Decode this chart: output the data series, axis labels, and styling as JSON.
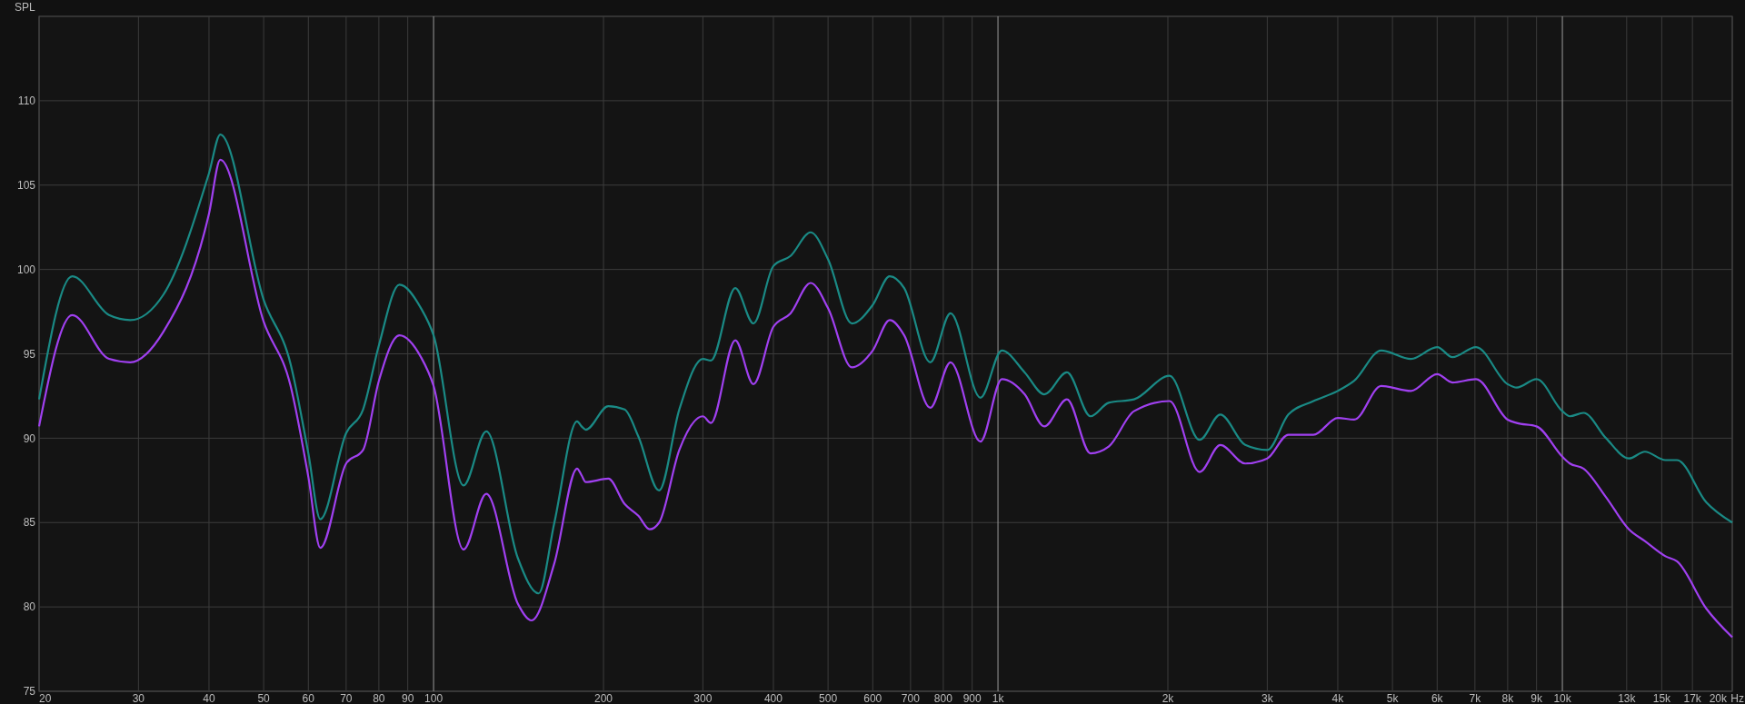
{
  "chart_data": {
    "type": "line",
    "ylabel": "SPL",
    "log": "x",
    "grid": true,
    "line_style": "solid",
    "marker": "none",
    "xlim": [
      20,
      20000
    ],
    "ylim": [
      75,
      115
    ],
    "xticks": [
      20,
      30,
      40,
      50,
      60,
      70,
      80,
      90,
      100,
      200,
      300,
      400,
      500,
      600,
      700,
      800,
      900,
      {
        "value": 1000,
        "label": "1k"
      },
      {
        "value": 2000,
        "label": "2k"
      },
      {
        "value": 3000,
        "label": "3k"
      },
      {
        "value": 4000,
        "label": "4k"
      },
      {
        "value": 5000,
        "label": "5k"
      },
      {
        "value": 6000,
        "label": "6k"
      },
      {
        "value": 7000,
        "label": "7k"
      },
      {
        "value": 8000,
        "label": "8k"
      },
      {
        "value": 9000,
        "label": "9k"
      },
      {
        "value": 10000,
        "label": "10k"
      },
      {
        "value": 13000,
        "label": "13k"
      },
      {
        "value": 15000,
        "label": "15k"
      },
      {
        "value": 17000,
        "label": "17k"
      },
      {
        "value": 20000,
        "label": "20k"
      }
    ],
    "xlabel": "Hz",
    "yticks": [
      75,
      80,
      85,
      90,
      95,
      100,
      105,
      110
    ],
    "series": [
      {
        "color": "#1a8a85",
        "x": [
          20,
          22.9,
          26.6,
          29,
          33.2,
          40,
          41.9,
          50,
          55.8,
          60,
          63,
          70,
          75,
          80,
          87,
          95,
          100,
          113,
          124,
          141,
          153.5,
          163.7,
          179.6,
          182.9,
          186,
          204,
          218,
          230.6,
          250.9,
          272.5,
          300,
          310,
          342.4,
          368.8,
          400,
          429,
          465.7,
          500,
          551,
          600,
          643,
          682,
          758.8,
          824,
          931,
          1016,
          1115,
          1208,
          1325,
          1459,
          1571,
          1742,
          2014,
          2277,
          2477,
          2742,
          3000,
          3270,
          3622,
          4000,
          4277,
          4777,
          5392,
          6000,
          6386,
          7031,
          8000,
          8300,
          9000,
          10000,
          10310,
          10900,
          11950,
          13120,
          14000,
          15230,
          15960,
          17990,
          20000
        ],
        "values": [
          92.3,
          99.6,
          97.3,
          97.0,
          98.5,
          105.7,
          108.0,
          98.2,
          94.4,
          89.1,
          85.2,
          90.3,
          91.7,
          95.5,
          99.1,
          97.7,
          96.1,
          87.2,
          90.4,
          82.9,
          80.8,
          85.0,
          91.0,
          90.7,
          90.5,
          91.9,
          91.7,
          90.1,
          86.9,
          91.7,
          94.7,
          94.6,
          98.9,
          96.8,
          100.2,
          100.8,
          102.2,
          100.6,
          96.8,
          97.9,
          99.6,
          98.9,
          94.5,
          97.4,
          92.4,
          95.2,
          93.9,
          92.6,
          93.9,
          91.3,
          92.1,
          92.3,
          93.7,
          89.9,
          91.4,
          89.6,
          89.3,
          91.4,
          92.2,
          92.8,
          93.4,
          95.2,
          94.7,
          95.4,
          94.8,
          95.4,
          93.2,
          93.0,
          93.5,
          91.6,
          91.3,
          91.5,
          90.0,
          88.8,
          89.2,
          88.7,
          88.7,
          86.2,
          85.0
        ]
      },
      {
        "color": "#a040f0",
        "x": [
          20,
          22.9,
          26.6,
          29,
          33.2,
          40,
          41.9,
          50,
          55.8,
          60,
          63,
          70,
          75,
          80,
          87,
          95,
          100,
          113,
          124,
          141,
          149.2,
          163.7,
          179.6,
          182.9,
          186,
          204,
          218,
          230.6,
          241.5,
          251,
          272.5,
          300,
          310,
          342.4,
          368.8,
          400,
          429,
          465.7,
          500,
          551,
          600,
          643,
          682,
          758.8,
          824,
          931,
          1016,
          1115,
          1208,
          1325,
          1459,
          1571,
          1742,
          2014,
          2277,
          2477,
          2742,
          3000,
          3270,
          3622,
          4000,
          4277,
          4777,
          5392,
          6000,
          6386,
          7031,
          8000,
          8300,
          9000,
          10000,
          10310,
          10900,
          11950,
          13120,
          14000,
          15230,
          15960,
          17990,
          20000
        ],
        "values": [
          90.7,
          97.3,
          94.7,
          94.5,
          96.3,
          103.3,
          106.5,
          96.9,
          93.1,
          87.7,
          83.5,
          88.5,
          89.3,
          93.4,
          96.1,
          94.8,
          93.1,
          83.4,
          86.7,
          80.2,
          79.2,
          82.6,
          88.2,
          87.8,
          87.4,
          87.6,
          86.1,
          85.4,
          84.6,
          85.0,
          89.3,
          91.3,
          90.9,
          95.8,
          93.2,
          96.6,
          97.4,
          99.2,
          97.7,
          94.2,
          95.2,
          97.0,
          96.1,
          91.8,
          94.5,
          89.8,
          93.5,
          92.6,
          90.7,
          92.3,
          89.1,
          89.5,
          91.6,
          92.2,
          88.0,
          89.6,
          88.5,
          88.8,
          90.2,
          90.2,
          91.2,
          91.1,
          93.1,
          92.8,
          93.8,
          93.3,
          93.5,
          91.1,
          90.9,
          90.7,
          88.9,
          88.5,
          88.2,
          86.5,
          84.6,
          83.9,
          83.0,
          82.7,
          79.9,
          78.2
        ]
      }
    ]
  }
}
